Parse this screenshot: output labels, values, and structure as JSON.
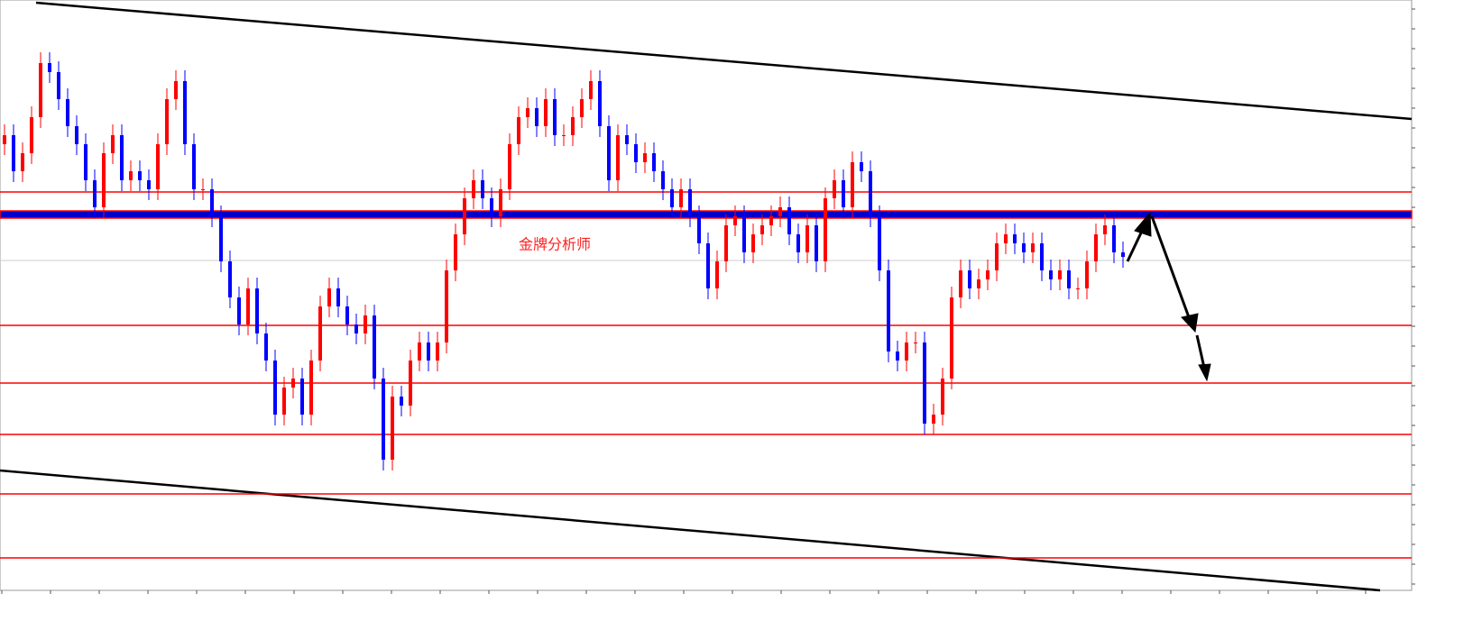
{
  "chart_data": {
    "type": "candlestick",
    "annotation": "金牌分析师",
    "ylim": [
      0,
      655
    ],
    "up_color": "#ff0000",
    "down_color": "#0000ff",
    "levels": [
      442,
      294,
      230,
      173,
      107,
      36
    ],
    "level_color": "#ff0000",
    "key_level": 417,
    "key_level_color": "#0000cc",
    "reference_level": 366,
    "open": [
      495,
      505,
      465,
      485,
      525,
      585,
      575,
      545,
      515,
      495,
      455,
      425,
      485,
      505,
      455,
      465,
      455,
      445,
      495,
      545,
      565,
      495,
      445,
      445,
      415,
      365,
      325,
      295,
      335,
      285,
      255,
      195,
      225,
      235,
      195,
      255,
      315,
      335,
      315,
      295,
      285,
      305,
      235,
      145,
      215,
      205,
      255,
      275,
      255,
      275,
      355,
      395,
      435,
      455,
      435,
      415,
      445,
      495,
      525,
      535,
      515,
      545,
      505,
      505,
      525,
      545,
      565,
      515,
      455,
      505,
      495,
      475,
      485,
      465,
      445,
      425,
      445,
      415,
      385,
      335,
      365,
      405,
      415,
      375,
      395,
      405,
      415,
      425,
      395,
      375,
      405,
      365,
      435,
      455,
      425,
      475,
      465,
      415,
      355,
      265,
      255,
      275,
      275,
      185,
      195,
      235,
      325,
      355,
      335,
      345,
      355,
      385,
      395,
      385,
      375,
      385,
      355,
      345,
      355,
      335,
      335,
      365,
      395,
      405,
      375
    ],
    "high": [
      517,
      517,
      497,
      537,
      597,
      597,
      587,
      557,
      527,
      507,
      467,
      497,
      517,
      517,
      477,
      477,
      467,
      507,
      557,
      577,
      577,
      507,
      457,
      457,
      427,
      377,
      337,
      347,
      347,
      297,
      267,
      237,
      247,
      247,
      267,
      327,
      347,
      347,
      327,
      307,
      317,
      317,
      247,
      227,
      227,
      267,
      287,
      287,
      287,
      367,
      407,
      447,
      467,
      467,
      447,
      457,
      507,
      537,
      547,
      547,
      557,
      557,
      517,
      537,
      557,
      577,
      577,
      527,
      517,
      517,
      507,
      497,
      497,
      477,
      457,
      457,
      457,
      427,
      397,
      377,
      417,
      427,
      427,
      407,
      417,
      427,
      437,
      437,
      407,
      417,
      417,
      447,
      467,
      467,
      487,
      487,
      477,
      427,
      367,
      277,
      287,
      287,
      287,
      207,
      247,
      337,
      367,
      367,
      357,
      367,
      397,
      407,
      407,
      397,
      397,
      397,
      367,
      367,
      367,
      347,
      377,
      407,
      417,
      417,
      387
    ],
    "low": [
      483,
      453,
      453,
      473,
      513,
      563,
      533,
      503,
      483,
      443,
      413,
      413,
      473,
      443,
      443,
      443,
      433,
      433,
      483,
      533,
      483,
      433,
      433,
      403,
      353,
      313,
      283,
      283,
      273,
      243,
      183,
      183,
      213,
      183,
      183,
      243,
      303,
      303,
      283,
      273,
      273,
      223,
      133,
      133,
      193,
      193,
      243,
      243,
      243,
      263,
      343,
      383,
      423,
      423,
      403,
      403,
      433,
      483,
      513,
      503,
      503,
      493,
      493,
      493,
      513,
      533,
      503,
      443,
      443,
      483,
      463,
      463,
      453,
      433,
      413,
      413,
      403,
      373,
      323,
      323,
      353,
      393,
      363,
      363,
      383,
      393,
      403,
      383,
      363,
      363,
      353,
      353,
      423,
      413,
      413,
      453,
      403,
      343,
      253,
      243,
      243,
      263,
      173,
      173,
      183,
      223,
      313,
      323,
      323,
      333,
      343,
      373,
      373,
      363,
      363,
      343,
      333,
      333,
      323,
      323,
      323,
      353,
      383,
      363,
      358
    ],
    "close": [
      505,
      465,
      485,
      525,
      585,
      575,
      545,
      515,
      495,
      455,
      425,
      485,
      505,
      455,
      465,
      455,
      445,
      495,
      545,
      565,
      495,
      445,
      445,
      415,
      365,
      325,
      295,
      335,
      285,
      255,
      195,
      225,
      235,
      195,
      255,
      315,
      335,
      315,
      295,
      285,
      305,
      235,
      145,
      215,
      205,
      255,
      275,
      255,
      275,
      355,
      395,
      435,
      455,
      435,
      415,
      445,
      495,
      525,
      535,
      515,
      545,
      505,
      505,
      525,
      545,
      565,
      515,
      455,
      505,
      495,
      475,
      485,
      465,
      445,
      425,
      445,
      415,
      385,
      335,
      365,
      405,
      415,
      375,
      395,
      405,
      415,
      425,
      395,
      375,
      405,
      365,
      435,
      455,
      425,
      475,
      465,
      415,
      355,
      265,
      255,
      275,
      275,
      185,
      195,
      235,
      325,
      355,
      335,
      345,
      355,
      385,
      395,
      385,
      375,
      385,
      355,
      345,
      355,
      335,
      335,
      365,
      395,
      405,
      375,
      370
    ]
  }
}
